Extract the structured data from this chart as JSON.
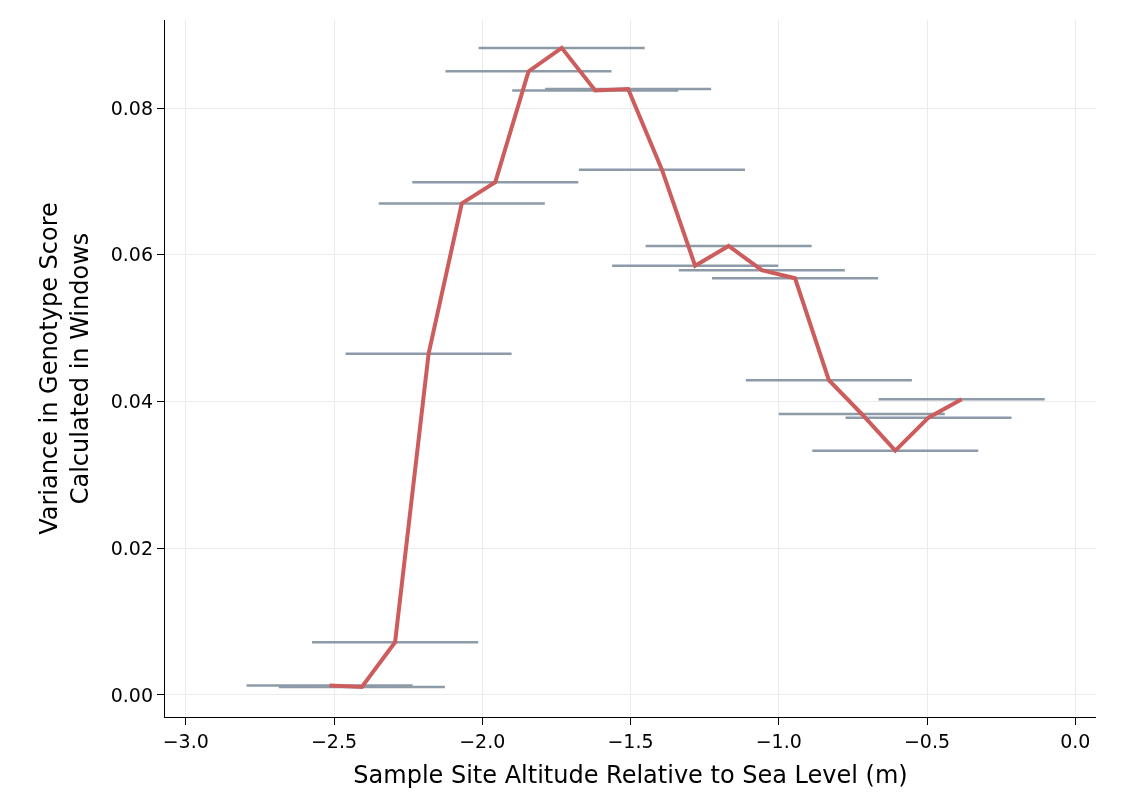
{
  "chart_data": {
    "type": "line",
    "xlabel": "Sample Site Altitude Relative to Sea Level (m)",
    "ylabel": "Variance in Genotype Score\nCalculated in Windows",
    "x": [
      -2.515,
      -2.406,
      -2.294,
      -2.181,
      -2.069,
      -1.956,
      -1.844,
      -1.732,
      -1.619,
      -1.508,
      -1.394,
      -1.282,
      -1.169,
      -1.057,
      -0.945,
      -0.831,
      -0.72,
      -0.607,
      -0.495,
      -0.383
    ],
    "series": [
      {
        "color": "#cd5c5c",
        "values": [
          0.0013,
          0.0011,
          0.0072,
          0.0465,
          0.067,
          0.0699,
          0.085,
          0.0882,
          0.0824,
          0.0826,
          0.0716,
          0.0585,
          0.0612,
          0.0579,
          0.0568,
          0.0429,
          0.0383,
          0.0333,
          0.0378,
          0.0403
        ],
        "xerrors": [
          0.28,
          0.28,
          0.28,
          0.28,
          0.28,
          0.28,
          0.28,
          0.28,
          0.28,
          0.28,
          0.28,
          0.28,
          0.28,
          0.28,
          0.28,
          0.28,
          0.28,
          0.28,
          0.28,
          0.28
        ]
      }
    ],
    "xlim": [
      -3.07,
      0.07
    ],
    "ylim": [
      -0.003,
      0.092
    ],
    "xticks": [
      {
        "value": -3.0,
        "label": "−3.0"
      },
      {
        "value": -2.5,
        "label": "−2.5"
      },
      {
        "value": -2.0,
        "label": "−2.0"
      },
      {
        "value": -1.5,
        "label": "−1.5"
      },
      {
        "value": -1.0,
        "label": "−1.0"
      },
      {
        "value": -0.5,
        "label": "−0.5"
      },
      {
        "value": 0.0,
        "label": "0.0"
      }
    ],
    "yticks": [
      {
        "value": 0.0,
        "label": "0.00"
      },
      {
        "value": 0.02,
        "label": "0.02"
      },
      {
        "value": 0.04,
        "label": "0.04"
      },
      {
        "value": 0.06,
        "label": "0.06"
      },
      {
        "value": 0.08,
        "label": "0.08"
      }
    ],
    "grid": true,
    "marker": "none",
    "line_style": "solid"
  }
}
